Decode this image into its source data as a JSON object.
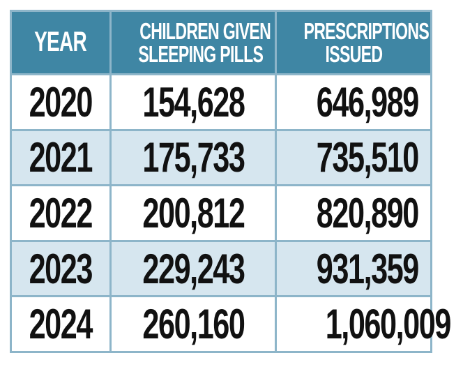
{
  "chart_data": {
    "type": "table",
    "columns": [
      "YEAR",
      "CHILDREN GIVEN SLEEPING PILLS",
      "PRESCRIPTIONS ISSUED"
    ],
    "header_lines": [
      [
        "YEAR"
      ],
      [
        "CHILDREN GIVEN",
        "SLEEPING PILLS"
      ],
      [
        "PRESCRIPTIONS",
        "ISSUED"
      ]
    ],
    "rows": [
      [
        "2020",
        "154,628",
        "646,989"
      ],
      [
        "2021",
        "175,733",
        "735,510"
      ],
      [
        "2022",
        "200,812",
        "820,890"
      ],
      [
        "2023",
        "229,243",
        "931,359"
      ],
      [
        "2024",
        "260,160",
        "1,060,009"
      ]
    ],
    "colors": {
      "header": "#3f86a4",
      "alt_row": "#d6e6ef",
      "border": "#8db5c9"
    }
  }
}
